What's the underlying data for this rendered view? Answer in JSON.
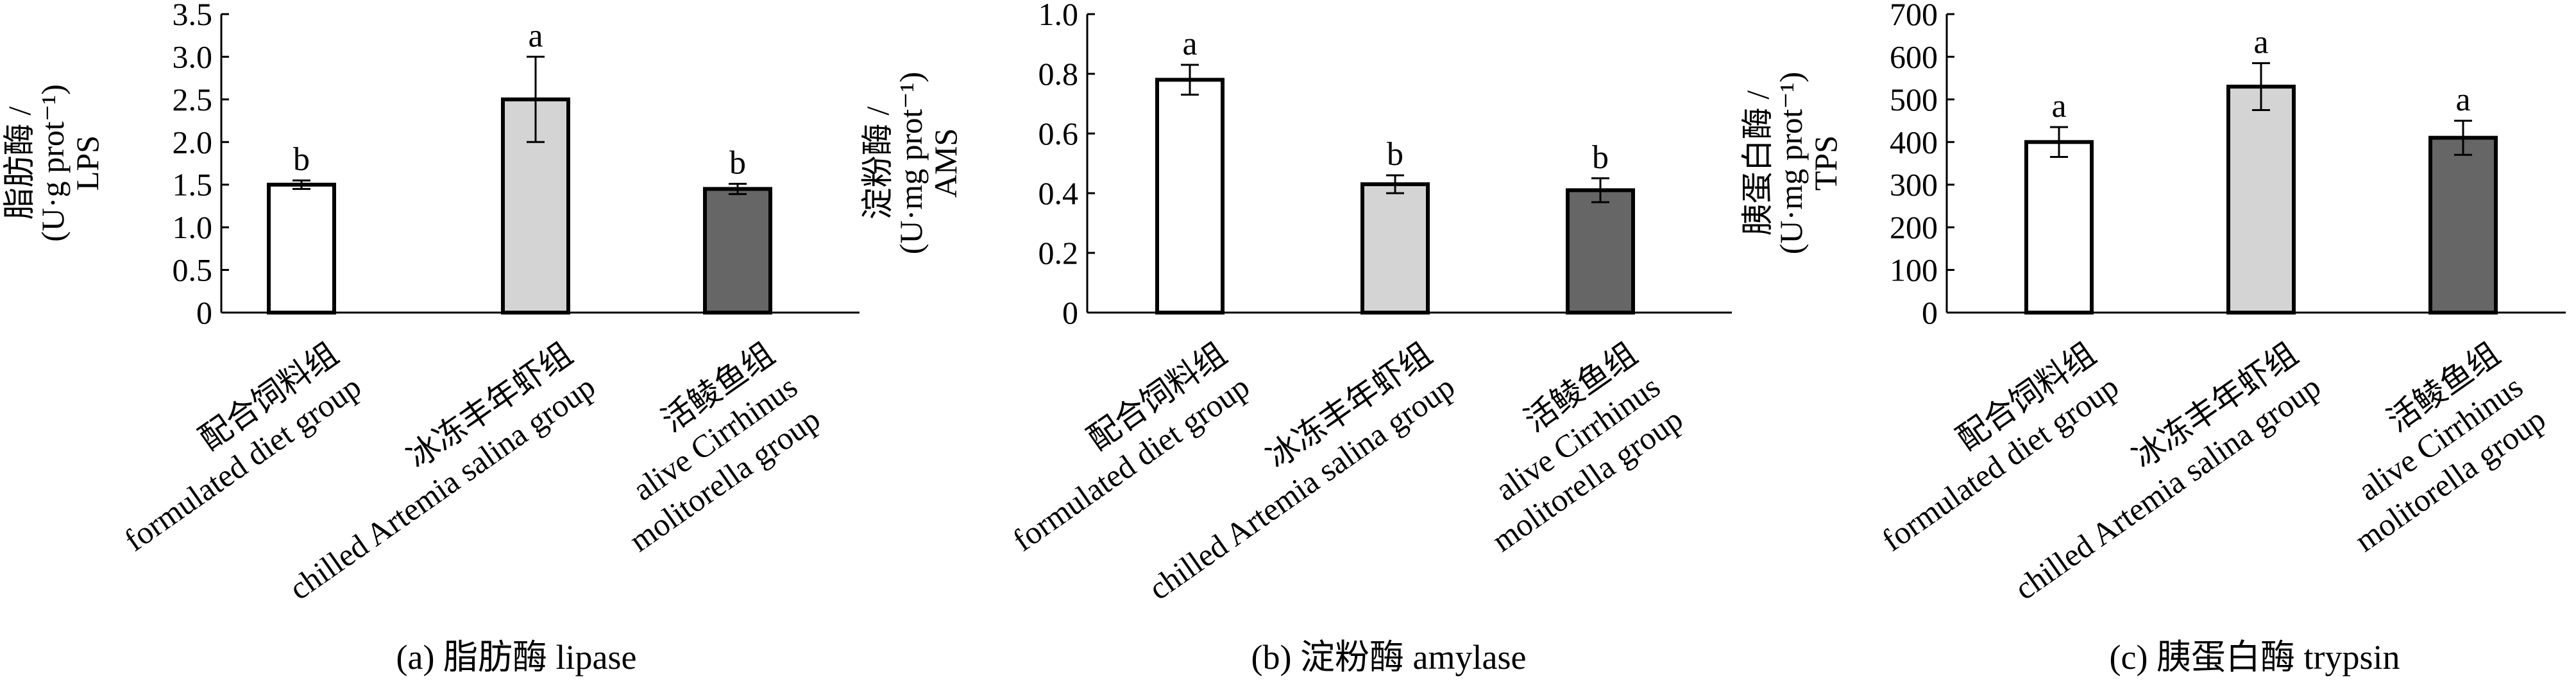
{
  "chart_data": [
    {
      "type": "bar",
      "caption": "(a) 脂肪酶 lipase",
      "ylabel_lines": [
        "脂肪酶 /",
        "(U·g prot⁻¹)",
        "LPS"
      ],
      "ylim": [
        0,
        3.5
      ],
      "yticks": [
        "0",
        "0.5",
        "1.0",
        "1.5",
        "2.0",
        "2.5",
        "3.0",
        "3.5"
      ],
      "categories": [
        {
          "cn": "配合饲料组",
          "en": [
            "formulated diet group"
          ]
        },
        {
          "cn": "冰冻丰年虾组",
          "en": [
            "chilled Artemia salina group"
          ]
        },
        {
          "cn": "活鲮鱼组",
          "en": [
            "alive Cirrhinus",
            "molitorella group"
          ]
        }
      ],
      "values": [
        1.5,
        2.5,
        1.45
      ],
      "errors": [
        0.05,
        0.5,
        0.06
      ],
      "significance": [
        "b",
        "a",
        "b"
      ],
      "colors": [
        "#ffffff",
        "#d4d4d4",
        "#666666"
      ]
    },
    {
      "type": "bar",
      "caption": "(b) 淀粉酶 amylase",
      "ylabel_lines": [
        "淀粉酶 /",
        "(U·mg prot⁻¹)",
        "AMS"
      ],
      "ylim": [
        0,
        1.0
      ],
      "yticks": [
        "0",
        "0.2",
        "0.4",
        "0.6",
        "0.8",
        "1.0"
      ],
      "categories": [
        {
          "cn": "配合饲料组",
          "en": [
            "formulated diet group"
          ]
        },
        {
          "cn": "冰冻丰年虾组",
          "en": [
            "chilled Artemia salina group"
          ]
        },
        {
          "cn": "活鲮鱼组",
          "en": [
            "alive Cirrhinus",
            "molitorella group"
          ]
        }
      ],
      "values": [
        0.78,
        0.43,
        0.41
      ],
      "errors": [
        0.05,
        0.03,
        0.04
      ],
      "significance": [
        "a",
        "b",
        "b"
      ],
      "colors": [
        "#ffffff",
        "#d4d4d4",
        "#666666"
      ]
    },
    {
      "type": "bar",
      "caption": "(c) 胰蛋白酶 trypsin",
      "ylabel_lines": [
        "胰蛋白酶 /",
        "(U·mg prot⁻¹)",
        "TPS"
      ],
      "ylim": [
        0,
        700
      ],
      "yticks": [
        "0",
        "100",
        "200",
        "300",
        "400",
        "500",
        "600",
        "700"
      ],
      "categories": [
        {
          "cn": "配合饲料组",
          "en": [
            "formulated diet group"
          ]
        },
        {
          "cn": "冰冻丰年虾组",
          "en": [
            "chilled Artemia salina group"
          ]
        },
        {
          "cn": "活鲮鱼组",
          "en": [
            "alive Cirrhinus",
            "molitorella group"
          ]
        }
      ],
      "values": [
        400,
        530,
        410
      ],
      "errors": [
        35,
        55,
        40
      ],
      "significance": [
        "a",
        "a",
        "a"
      ],
      "colors": [
        "#ffffff",
        "#d4d4d4",
        "#666666"
      ]
    }
  ]
}
